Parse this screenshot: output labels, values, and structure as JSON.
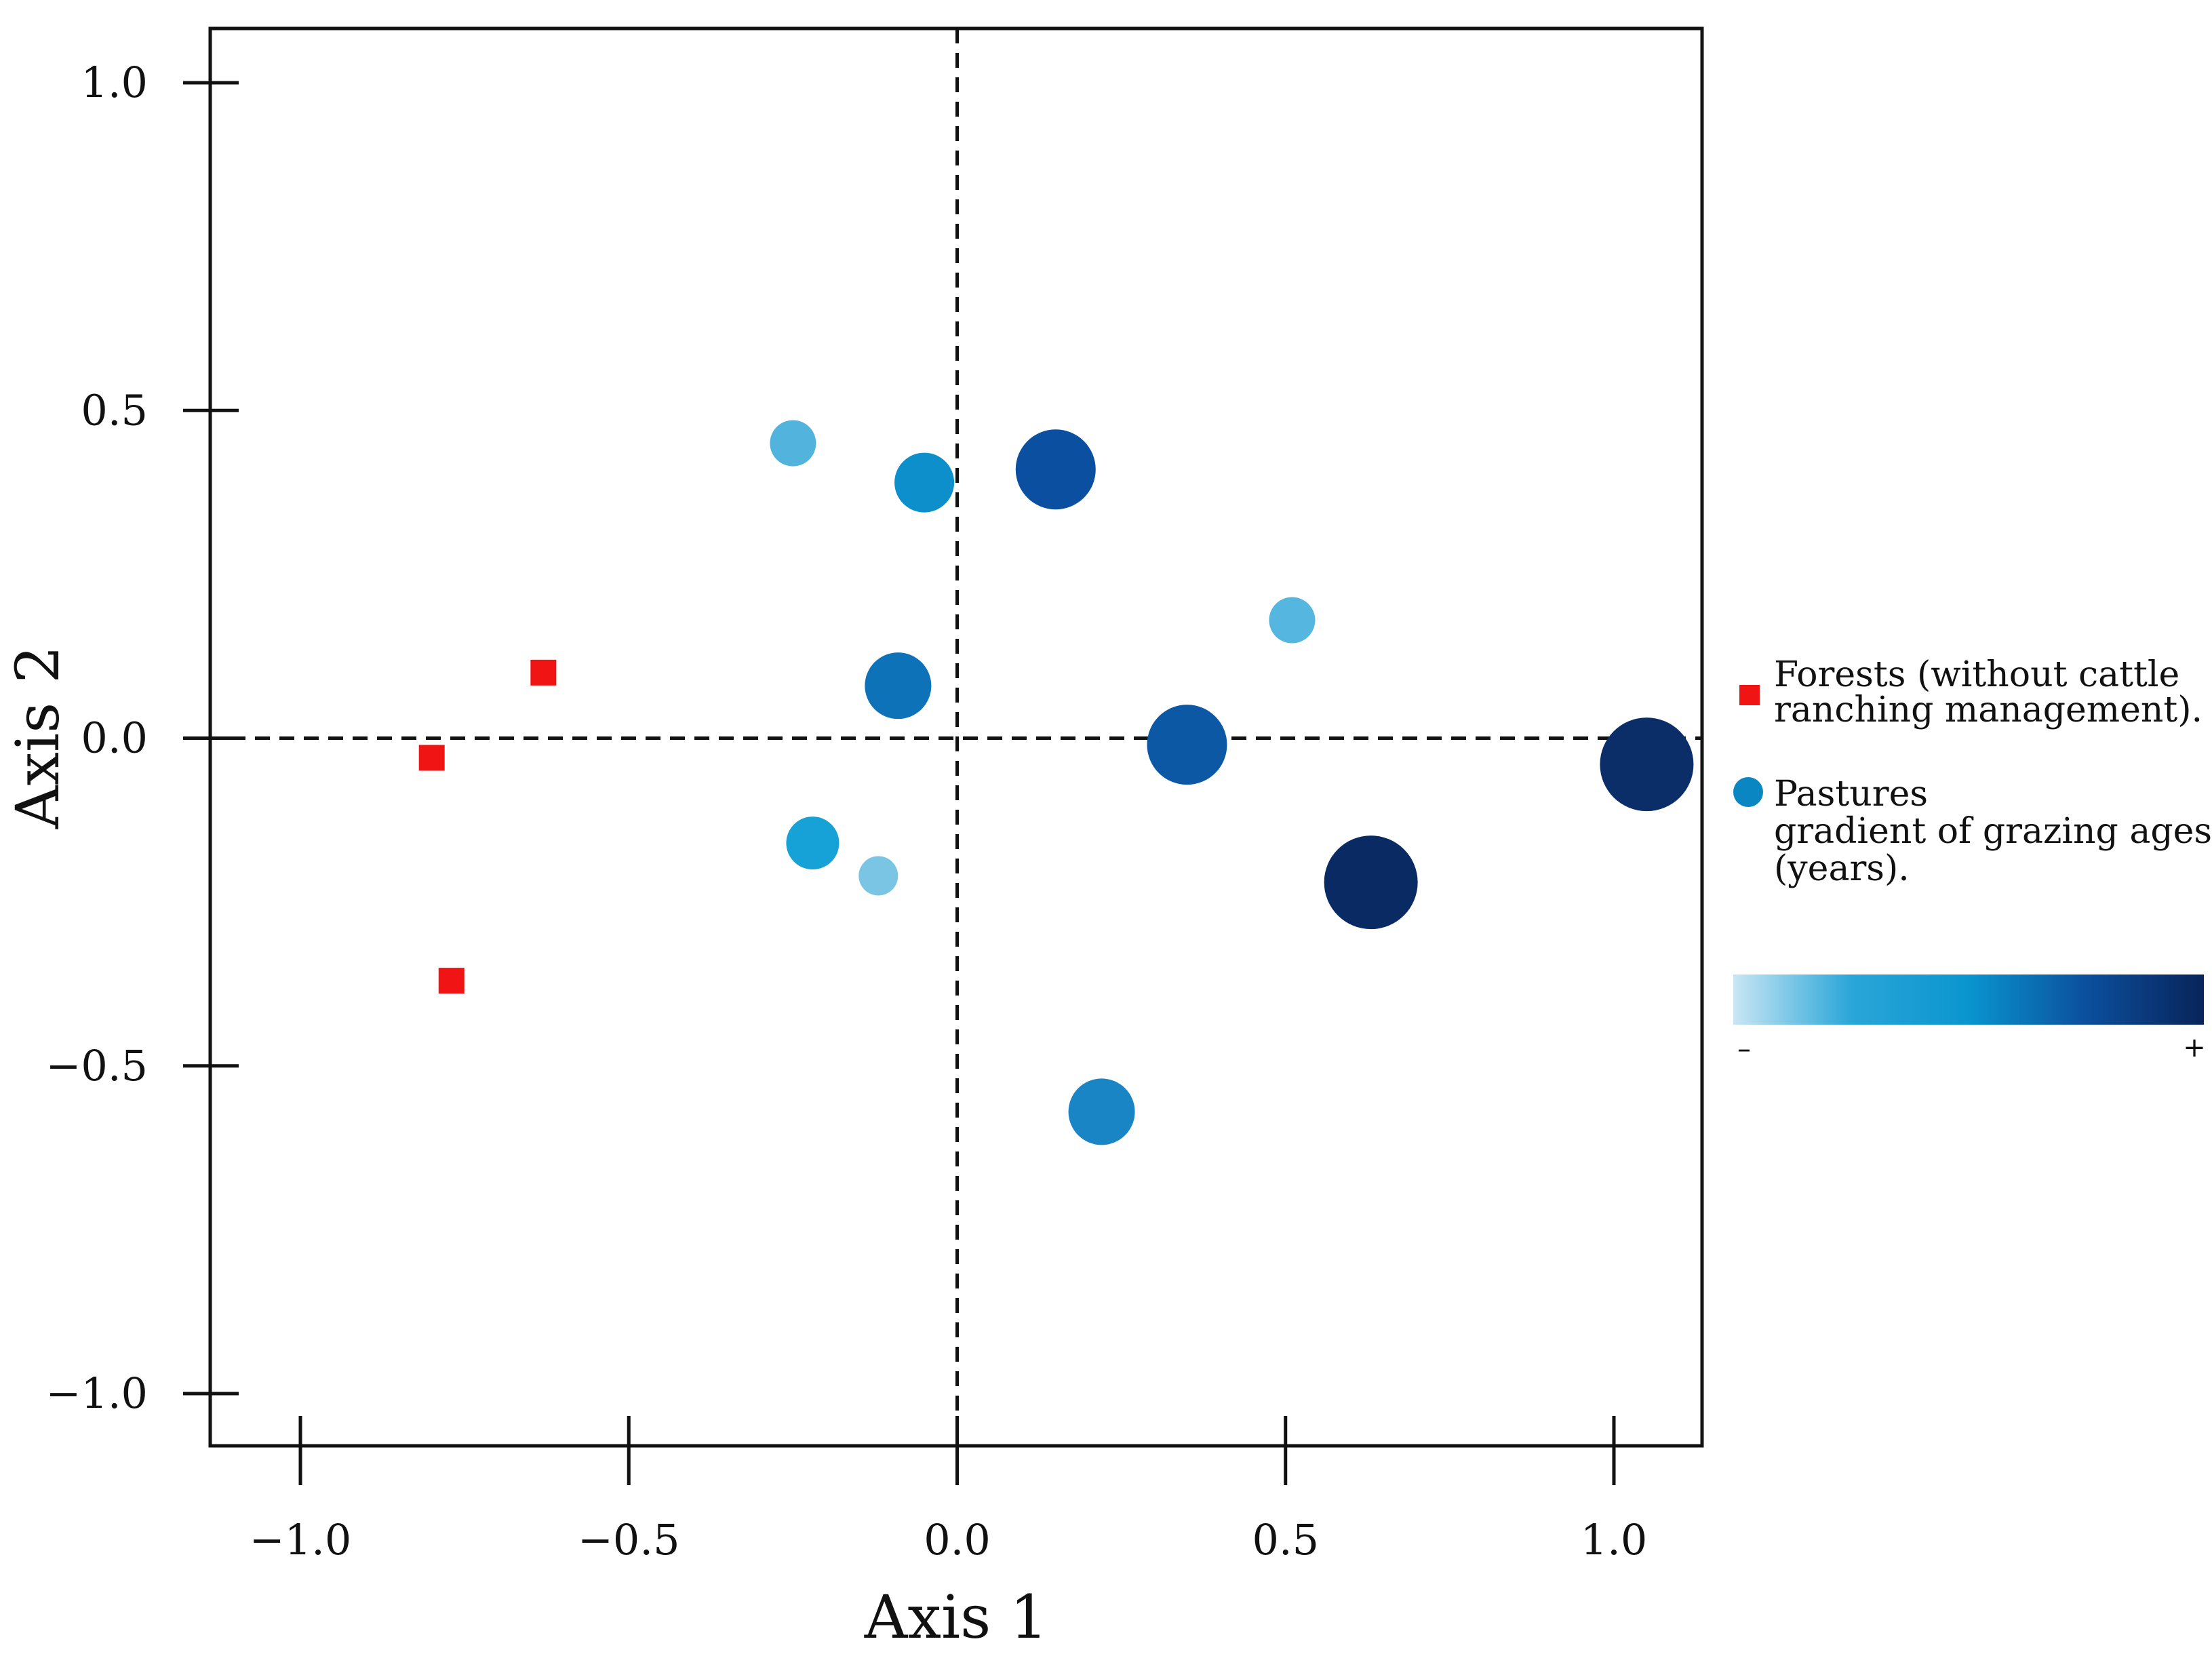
{
  "chart_data": {
    "type": "scatter",
    "title": "",
    "xlabel": "Axis 1",
    "ylabel": "Axis 2",
    "xlim": [
      -1.14,
      1.14
    ],
    "ylim": [
      -1.08,
      1.08
    ],
    "xticks": [
      -1.0,
      -0.5,
      0.0,
      0.5,
      1.0
    ],
    "yticks": [
      -1.0,
      -0.5,
      0.0,
      0.5,
      1.0
    ],
    "xtick_labels": [
      "−1.0",
      "−0.5",
      "0.0",
      "0.5",
      "1.0"
    ],
    "ytick_labels": [
      "−1.0",
      "−0.5",
      "0.0",
      "0.5",
      "1.0"
    ],
    "reference_lines": {
      "x": 0.0,
      "y": 0.0,
      "style": "dashed"
    },
    "series": [
      {
        "name": "Forests (without cattle ranching management).",
        "marker": "square",
        "color": "#f01414",
        "points": [
          {
            "x": -0.63,
            "y": 0.1
          },
          {
            "x": -0.8,
            "y": -0.03
          },
          {
            "x": -0.77,
            "y": -0.37
          }
        ]
      },
      {
        "name": "Pastures gradient of grazing ages (years).",
        "marker": "circle",
        "color": "#0a87c2",
        "points": [
          {
            "x": -0.25,
            "y": 0.45,
            "age_level": 2,
            "color": "#52b4dc"
          },
          {
            "x": -0.05,
            "y": 0.39,
            "age_level": 4,
            "color": "#0d8fcb"
          },
          {
            "x": 0.15,
            "y": 0.41,
            "age_level": 7,
            "color": "#0a4fa0"
          },
          {
            "x": 0.51,
            "y": 0.18,
            "age_level": 2,
            "color": "#55b6df"
          },
          {
            "x": -0.09,
            "y": 0.08,
            "age_level": 5,
            "color": "#0d72b8"
          },
          {
            "x": 0.35,
            "y": -0.01,
            "age_level": 7,
            "color": "#0c58a5"
          },
          {
            "x": 1.05,
            "y": -0.04,
            "age_level": 9,
            "color": "#0b2e68"
          },
          {
            "x": -0.22,
            "y": -0.16,
            "age_level": 3,
            "color": "#16a2d6"
          },
          {
            "x": -0.12,
            "y": -0.21,
            "age_level": 1,
            "color": "#7ac4e4"
          },
          {
            "x": 0.63,
            "y": -0.22,
            "age_level": 9,
            "color": "#0a2a64"
          },
          {
            "x": 0.22,
            "y": -0.57,
            "age_level": 5,
            "color": "#1a85c4"
          }
        ]
      }
    ],
    "legend": {
      "placement": "right",
      "forest_lines": [
        "Forests (without cattle",
        "ranching management)."
      ],
      "pasture_lines": [
        "Pastures",
        "gradient of grazing ages",
        "(years)."
      ],
      "gradient_low_label": "–",
      "gradient_high_label": "+",
      "gradient_colors": [
        "#c9e6f4",
        "#2aa6d8",
        "#0a95cf",
        "#0b4f9d",
        "#08245a"
      ]
    }
  }
}
